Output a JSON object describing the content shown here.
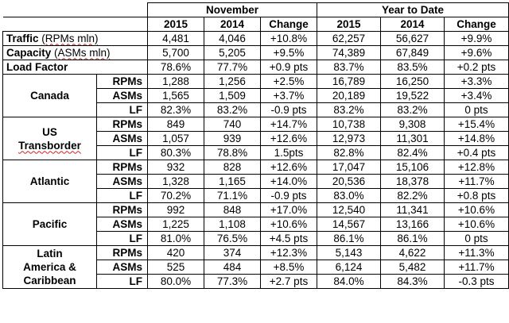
{
  "headers": {
    "period_current": "November",
    "period_ytd": "Year to Date",
    "col_2015": "2015",
    "col_2014": "2014",
    "col_change": "Change"
  },
  "system": [
    {
      "label": "Traffic",
      "unit": "(RPMs mln)",
      "nov_2015": "4,481",
      "nov_2014": "4,046",
      "nov_change": "+10.8%",
      "ytd_2015": "62,257",
      "ytd_2014": "56,627",
      "ytd_change": "+9.9%"
    },
    {
      "label": "Capacity",
      "unit": "(ASMs mln)",
      "nov_2015": "5,700",
      "nov_2014": "5,205",
      "nov_change": "+9.5%",
      "ytd_2015": "74,389",
      "ytd_2014": "67,849",
      "ytd_change": "+9.6%"
    },
    {
      "label": "Load Factor",
      "unit": "",
      "nov_2015": "78.6%",
      "nov_2014": "77.7%",
      "nov_change": "+0.9 pts",
      "ytd_2015": "83.7%",
      "ytd_2014": "83.5%",
      "ytd_change": "+0.2 pts"
    }
  ],
  "regions": [
    {
      "name": "Canada",
      "rows": [
        {
          "metric": "RPMs",
          "nov_2015": "1,288",
          "nov_2014": "1,256",
          "nov_change": "+2.5%",
          "ytd_2015": "16,789",
          "ytd_2014": "16,250",
          "ytd_change": "+3.3%"
        },
        {
          "metric": "ASMs",
          "nov_2015": "1,565",
          "nov_2014": "1,509",
          "nov_change": "+3.7%",
          "ytd_2015": "20,189",
          "ytd_2014": "19,522",
          "ytd_change": "+3.4%"
        },
        {
          "metric": "LF",
          "nov_2015": "82.3%",
          "nov_2014": "83.2%",
          "nov_change": "-0.9 pts",
          "ytd_2015": "83.2%",
          "ytd_2014": "83.2%",
          "ytd_change": "0 pts"
        }
      ]
    },
    {
      "name_line1": "US",
      "name_line2": "Transborder",
      "rows": [
        {
          "metric": "RPMs",
          "nov_2015": "849",
          "nov_2014": "740",
          "nov_change": "+14.7%",
          "ytd_2015": "10,738",
          "ytd_2014": "9,308",
          "ytd_change": "+15.4%"
        },
        {
          "metric": "ASMs",
          "nov_2015": "1,057",
          "nov_2014": "939",
          "nov_change": "+12.6%",
          "ytd_2015": "12,973",
          "ytd_2014": "11,301",
          "ytd_change": "+14.8%"
        },
        {
          "metric": "LF",
          "nov_2015": "80.3%",
          "nov_2014": "78.8%",
          "nov_change": "1.5pts",
          "ytd_2015": "82.8%",
          "ytd_2014": "82.4%",
          "ytd_change": "+0.4 pts"
        }
      ]
    },
    {
      "name": "Atlantic",
      "rows": [
        {
          "metric": "RPMs",
          "nov_2015": "932",
          "nov_2014": "828",
          "nov_change": "+12.6%",
          "ytd_2015": "17,047",
          "ytd_2014": "15,106",
          "ytd_change": "+12.8%"
        },
        {
          "metric": "ASMs",
          "nov_2015": "1,328",
          "nov_2014": "1,165",
          "nov_change": "+14.0%",
          "ytd_2015": "20,536",
          "ytd_2014": "18,378",
          "ytd_change": "+11.7%"
        },
        {
          "metric": "LF",
          "nov_2015": "70.2%",
          "nov_2014": "71.1%",
          "nov_change": "-0.9 pts",
          "ytd_2015": "83.0%",
          "ytd_2014": "82.2%",
          "ytd_change": "+0.8 pts"
        }
      ]
    },
    {
      "name": "Pacific",
      "rows": [
        {
          "metric": "RPMs",
          "nov_2015": "992",
          "nov_2014": "848",
          "nov_change": "+17.0%",
          "ytd_2015": "12,540",
          "ytd_2014": "11,341",
          "ytd_change": "+10.6%"
        },
        {
          "metric": "ASMs",
          "nov_2015": "1,225",
          "nov_2014": "1,108",
          "nov_change": "+10.6%",
          "ytd_2015": "14,567",
          "ytd_2014": "13,166",
          "ytd_change": "+10.6%"
        },
        {
          "metric": "LF",
          "nov_2015": "81.0%",
          "nov_2014": "76.5%",
          "nov_change": "+4.5 pts",
          "ytd_2015": "86.1%",
          "ytd_2014": "86.1%",
          "ytd_change": "0 pts"
        }
      ]
    },
    {
      "name_line1": "Latin",
      "name_line2": "America &",
      "name_line3": "Caribbean",
      "rows": [
        {
          "metric": "RPMs",
          "nov_2015": "420",
          "nov_2014": "374",
          "nov_change": "+12.3%",
          "ytd_2015": "5,143",
          "ytd_2014": "4,622",
          "ytd_change": "+11.3%"
        },
        {
          "metric": "ASMs",
          "nov_2015": "525",
          "nov_2014": "484",
          "nov_change": "+8.5%",
          "ytd_2015": "6,124",
          "ytd_2014": "5,482",
          "ytd_change": "+11.7%"
        },
        {
          "metric": "LF",
          "nov_2015": "80.0%",
          "nov_2014": "77.3%",
          "nov_change": "+2.7 pts",
          "ytd_2015": "84.0%",
          "ytd_2014": "84.3%",
          "ytd_change": "-0.3 pts"
        }
      ]
    }
  ]
}
